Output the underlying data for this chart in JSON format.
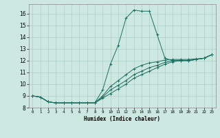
{
  "xlabel": "Humidex (Indice chaleur)",
  "bg_color": "#cde8e0",
  "grid_color": "#aacfc7",
  "line_color": "#1a6e62",
  "xlim": [
    -0.5,
    23.5
  ],
  "ylim": [
    8.0,
    16.8
  ],
  "xticks": [
    0,
    1,
    2,
    3,
    4,
    5,
    6,
    7,
    8,
    9,
    10,
    11,
    12,
    13,
    14,
    15,
    16,
    17,
    18,
    19,
    20,
    21,
    22,
    23
  ],
  "yticks": [
    8,
    9,
    10,
    11,
    12,
    13,
    14,
    15,
    16
  ],
  "lines": [
    {
      "x": [
        0,
        1,
        2,
        3,
        4,
        5,
        6,
        7,
        8,
        9,
        10,
        11,
        12,
        13,
        14,
        15,
        16,
        17,
        18,
        19,
        20,
        21,
        22,
        23
      ],
      "y": [
        9.0,
        8.9,
        8.5,
        8.4,
        8.4,
        8.4,
        8.4,
        8.4,
        8.4,
        9.5,
        11.7,
        13.3,
        15.6,
        16.3,
        16.2,
        16.2,
        14.2,
        12.2,
        12.0,
        12.0,
        12.0,
        12.1,
        12.2,
        12.5
      ]
    },
    {
      "x": [
        0,
        1,
        2,
        3,
        4,
        5,
        6,
        7,
        8,
        9,
        10,
        11,
        12,
        13,
        14,
        15,
        16,
        17,
        18,
        19,
        20,
        21,
        22,
        23
      ],
      "y": [
        9.0,
        8.9,
        8.5,
        8.4,
        8.4,
        8.4,
        8.4,
        8.4,
        8.4,
        9.0,
        9.8,
        10.3,
        10.8,
        11.3,
        11.6,
        11.8,
        11.9,
        12.05,
        12.1,
        12.1,
        12.1,
        12.15,
        12.2,
        12.5
      ]
    },
    {
      "x": [
        0,
        1,
        2,
        3,
        4,
        5,
        6,
        7,
        8,
        9,
        10,
        11,
        12,
        13,
        14,
        15,
        16,
        17,
        18,
        19,
        20,
        21,
        22,
        23
      ],
      "y": [
        9.0,
        8.9,
        8.5,
        8.4,
        8.4,
        8.4,
        8.4,
        8.4,
        8.4,
        8.9,
        9.5,
        9.9,
        10.3,
        10.8,
        11.1,
        11.4,
        11.6,
        11.85,
        12.0,
        12.0,
        12.0,
        12.1,
        12.2,
        12.5
      ]
    },
    {
      "x": [
        0,
        1,
        2,
        3,
        4,
        5,
        6,
        7,
        8,
        9,
        10,
        11,
        12,
        13,
        14,
        15,
        16,
        17,
        18,
        19,
        20,
        21,
        22,
        23
      ],
      "y": [
        9.0,
        8.9,
        8.5,
        8.4,
        8.4,
        8.4,
        8.4,
        8.4,
        8.4,
        8.8,
        9.2,
        9.6,
        10.0,
        10.5,
        10.8,
        11.1,
        11.4,
        11.7,
        11.9,
        12.0,
        12.0,
        12.1,
        12.2,
        12.5
      ]
    }
  ]
}
